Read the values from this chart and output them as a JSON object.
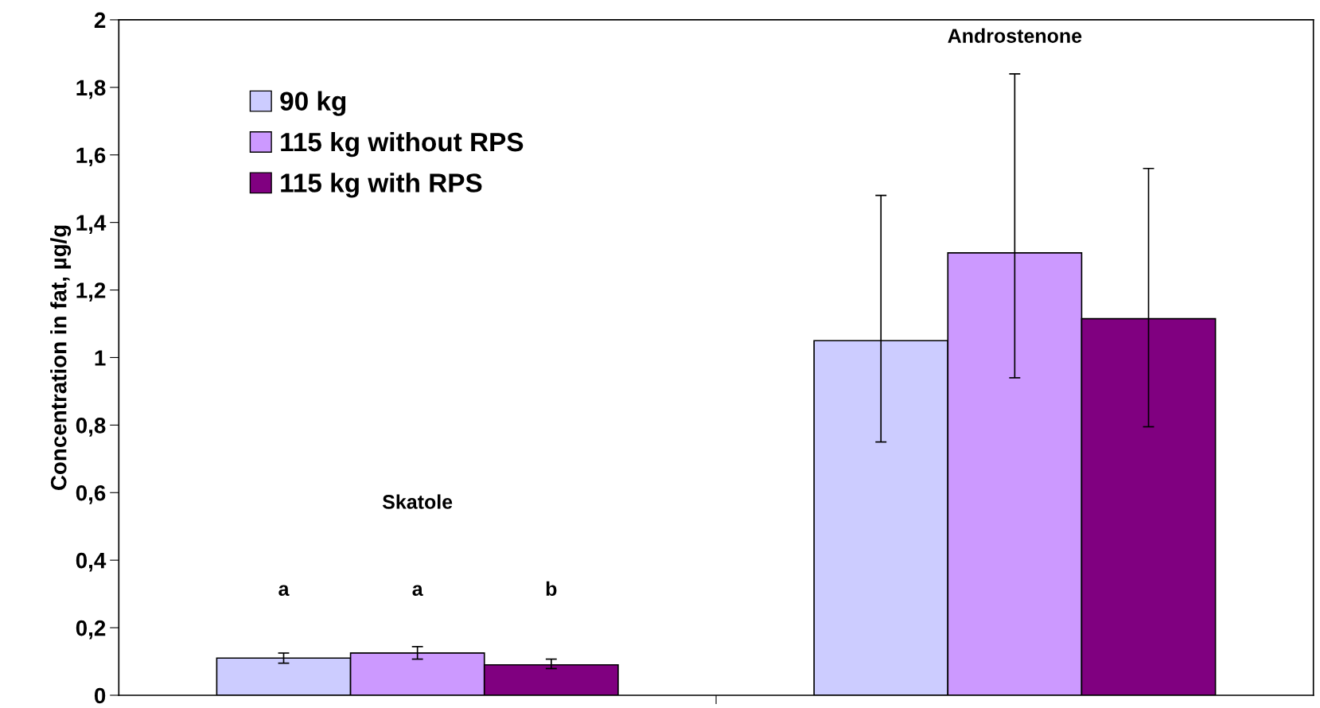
{
  "chart_data": {
    "type": "bar",
    "ylabel": "Concentration in fat, µg/g",
    "categories": [
      null,
      null
    ],
    "series": [
      {
        "name": "90 kg",
        "color": "#ccccff",
        "values": [
          0.11,
          1.05
        ],
        "errors": [
          [
            0.095,
            0.125
          ],
          [
            0.75,
            1.48
          ]
        ]
      },
      {
        "name": "115 kg without RPS",
        "color": "#cc99ff",
        "values": [
          0.125,
          1.31
        ],
        "errors": [
          [
            0.107,
            0.144
          ],
          [
            0.94,
            1.84
          ]
        ]
      },
      {
        "name": "115 kg with RPS",
        "color": "#800080",
        "values": [
          0.09,
          1.115
        ],
        "errors": [
          [
            0.079,
            0.107
          ],
          [
            0.795,
            1.56
          ]
        ]
      }
    ],
    "ylim": [
      0,
      2
    ],
    "yticks": [
      0,
      {
        "value": 0.2,
        "label": "0,2"
      },
      {
        "value": 0.4,
        "label": "0,4"
      },
      {
        "value": 0.6,
        "label": "0,6"
      },
      {
        "value": 0.8,
        "label": "0,8"
      },
      1,
      {
        "value": 1.2,
        "label": "1,2"
      },
      {
        "value": 1.4,
        "label": "1,4"
      },
      {
        "value": 1.6,
        "label": "1,6"
      },
      {
        "value": 1.8,
        "label": "1,8"
      },
      2
    ],
    "annotations": [
      "Skatole",
      "Androstenone",
      "a",
      "a",
      "b"
    ],
    "legend": "top left",
    "grid": false
  }
}
